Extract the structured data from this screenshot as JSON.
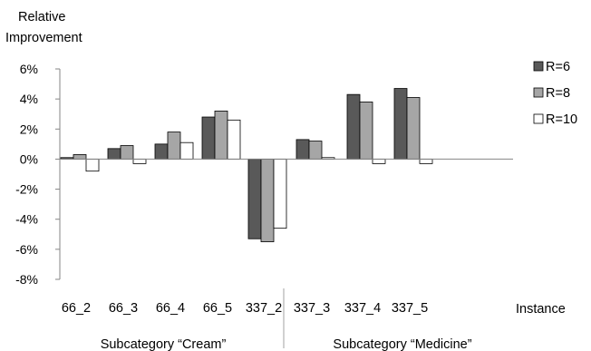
{
  "chart_data": {
    "type": "bar",
    "ylabel": "Relative Improvement",
    "xlabel": "Instance",
    "categories": [
      "66_2",
      "66_3",
      "66_4",
      "66_5",
      "337_2",
      "337_3",
      "337_4",
      "337_5"
    ],
    "yticks": [
      "6%",
      "4%",
      "2%",
      "0%",
      "-2%",
      "-4%",
      "-6%",
      "-8%"
    ],
    "ylim": [
      -8,
      6
    ],
    "ytick_values": [
      6,
      4,
      2,
      0,
      -2,
      -4,
      -6,
      -8
    ],
    "series": [
      {
        "name": "R=6",
        "color": "#595959",
        "values": [
          0.1,
          0.7,
          1.0,
          2.8,
          -5.3,
          1.3,
          4.3,
          4.7
        ]
      },
      {
        "name": "R=8",
        "color": "#a6a6a6",
        "values": [
          0.3,
          0.9,
          1.8,
          3.2,
          -5.5,
          1.2,
          3.8,
          4.1
        ]
      },
      {
        "name": "R=10",
        "color": "#ffffff",
        "values": [
          -0.8,
          -0.3,
          1.1,
          2.6,
          -4.6,
          0.1,
          -0.3,
          -0.3
        ]
      }
    ],
    "groups": [
      {
        "label": "Subcategory “Cream”"
      },
      {
        "label": "Subcategory “Medicine”"
      }
    ],
    "legend_position": "top-right",
    "grid": false
  }
}
